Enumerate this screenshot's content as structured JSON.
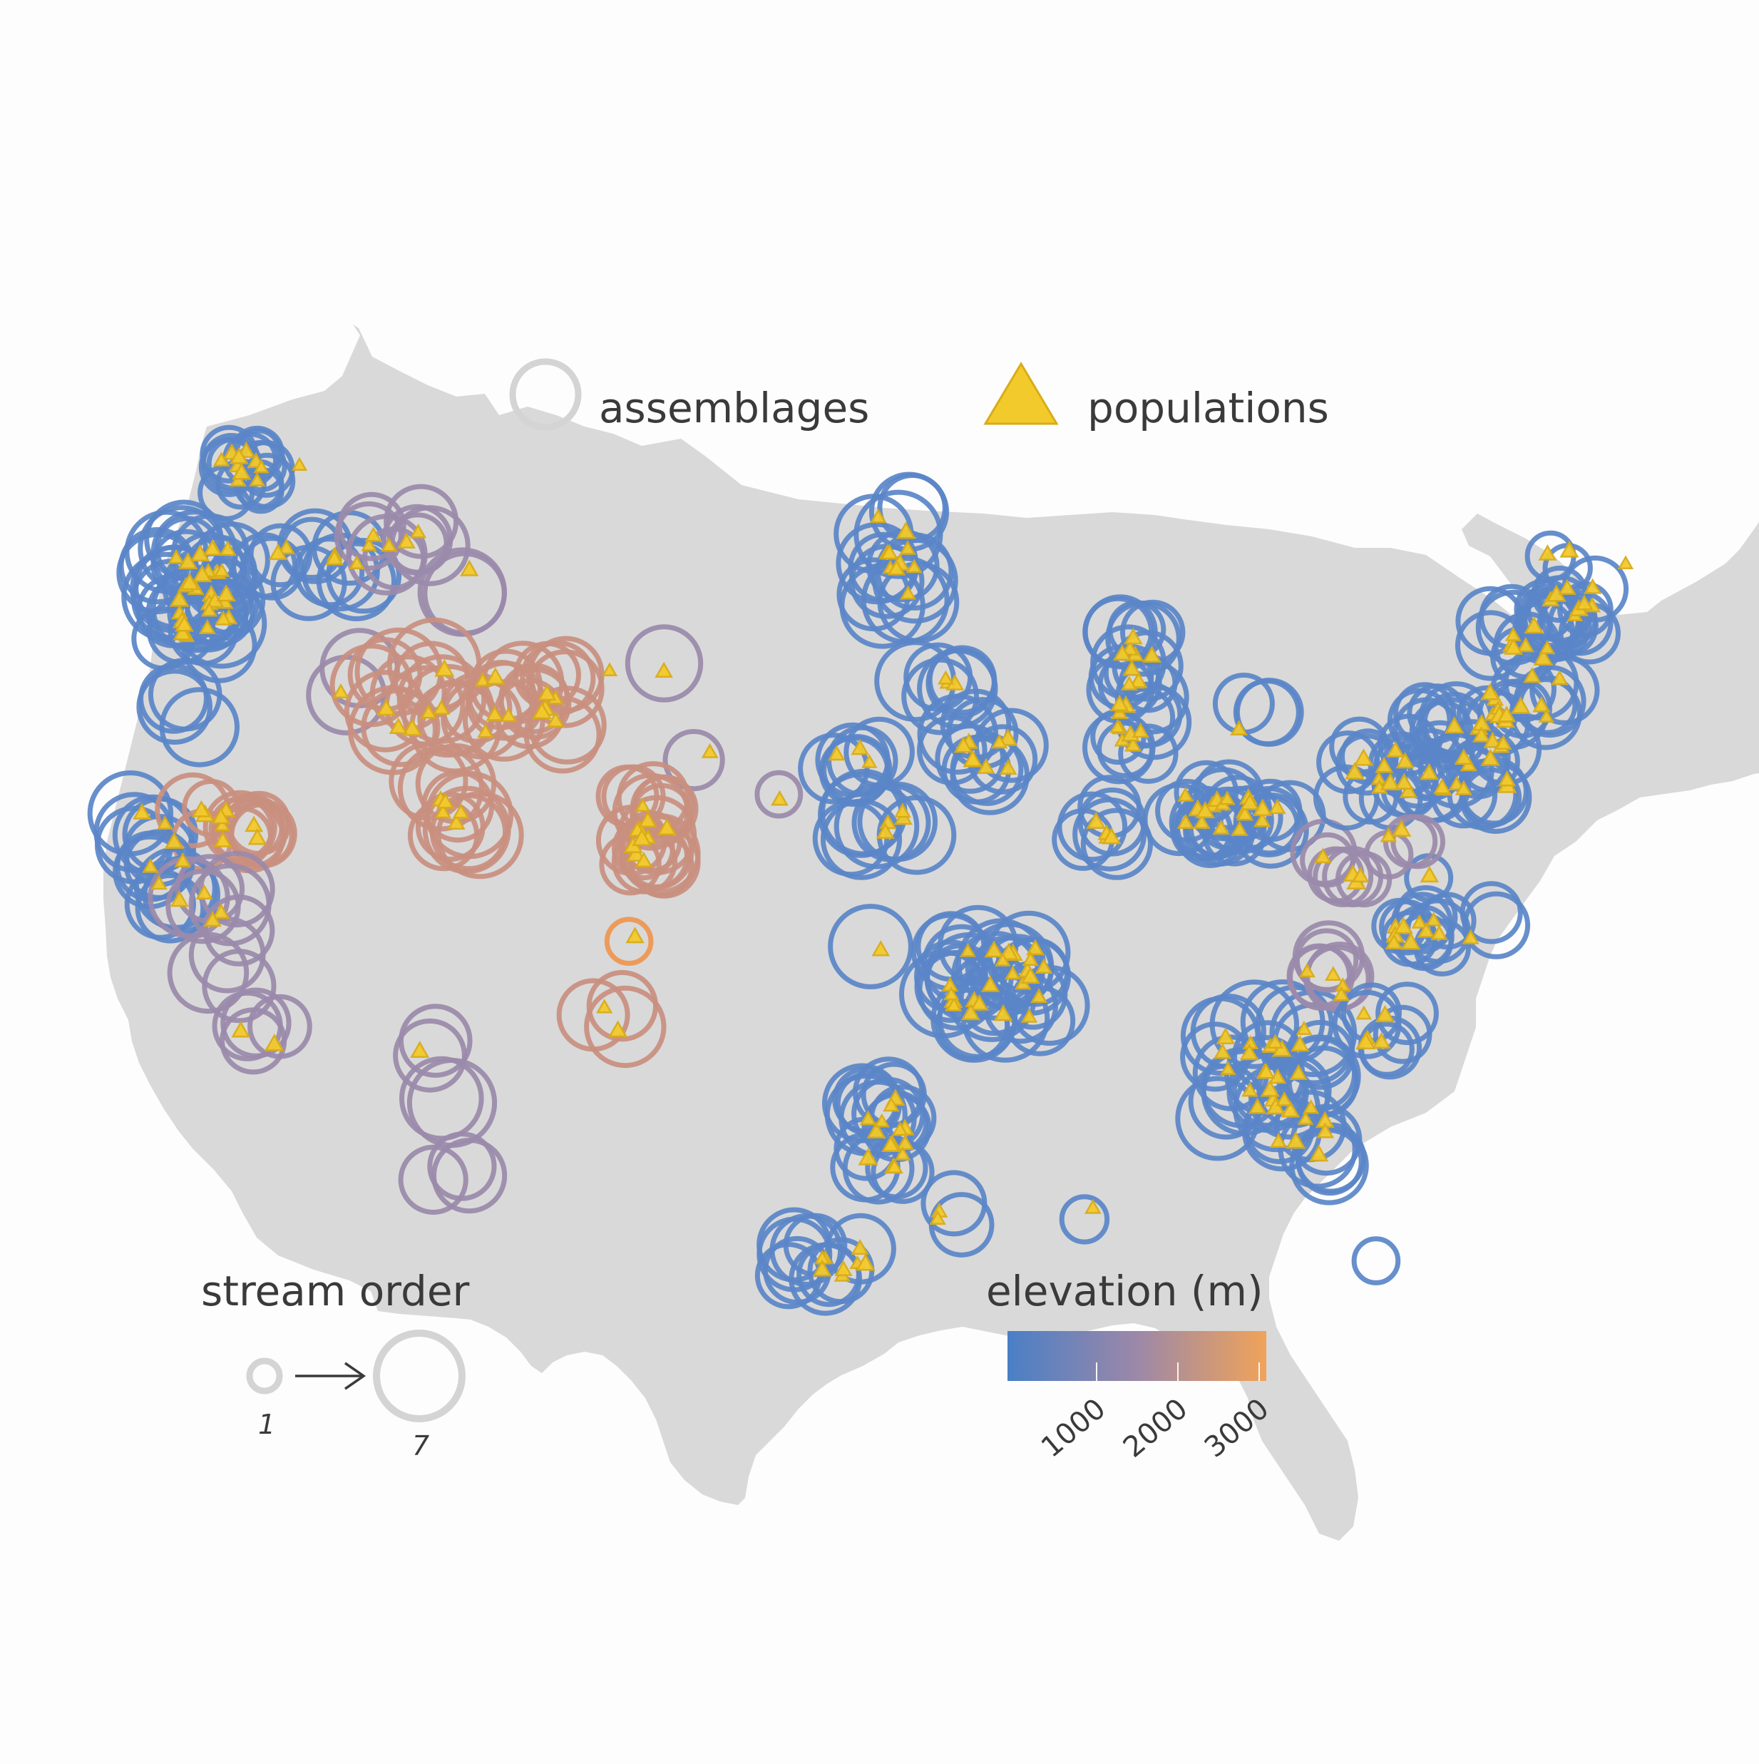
{
  "legend": {
    "assemblages_label": "assemblages",
    "populations_label": "populations",
    "stream_order_title": "stream order",
    "stream_order_min": "1",
    "stream_order_max": "7",
    "elevation_title": "elevation (m)",
    "elevation_ticks": [
      "1000",
      "2000",
      "3000"
    ]
  },
  "colors": {
    "land": "#d9d9d9",
    "legend_ring": "#d4d4d4",
    "population_fill": "#f3ca2c",
    "elevation_low": "#4a7fc6",
    "elevation_mid": "#9c88a8",
    "elevation_high": "#f0a35a"
  },
  "icons": {
    "assemblage_marker": "hollow-circle-icon",
    "population_marker": "yellow-triangle-icon",
    "stream_order_arrow": "arrow-right-icon"
  }
}
